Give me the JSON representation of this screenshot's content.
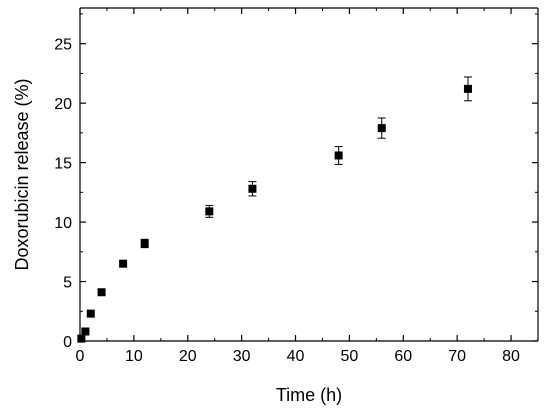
{
  "chart_data": {
    "type": "scatter",
    "title": "",
    "xlabel": "Time (h)",
    "ylabel": "Doxorubicin release (%)",
    "xlim": [
      0,
      85
    ],
    "ylim": [
      0,
      28
    ],
    "xticks": [
      0,
      10,
      20,
      30,
      40,
      50,
      60,
      70,
      80
    ],
    "yticks": [
      0,
      5,
      10,
      15,
      20,
      25
    ],
    "grid": false,
    "legend": "none",
    "marker": "square",
    "color": "#000000",
    "points": [
      {
        "x": 0.25,
        "y": 0.2,
        "err": 0
      },
      {
        "x": 1,
        "y": 0.8,
        "err": 0
      },
      {
        "x": 2,
        "y": 2.3,
        "err": 0
      },
      {
        "x": 4,
        "y": 4.1,
        "err": 0
      },
      {
        "x": 8,
        "y": 6.5,
        "err": 0
      },
      {
        "x": 12,
        "y": 8.2,
        "err": 0.35
      },
      {
        "x": 24,
        "y": 10.9,
        "err": 0.5
      },
      {
        "x": 32,
        "y": 12.8,
        "err": 0.6
      },
      {
        "x": 48,
        "y": 15.6,
        "err": 0.75
      },
      {
        "x": 56,
        "y": 17.9,
        "err": 0.85
      },
      {
        "x": 72,
        "y": 21.2,
        "err": 1.0
      }
    ]
  }
}
